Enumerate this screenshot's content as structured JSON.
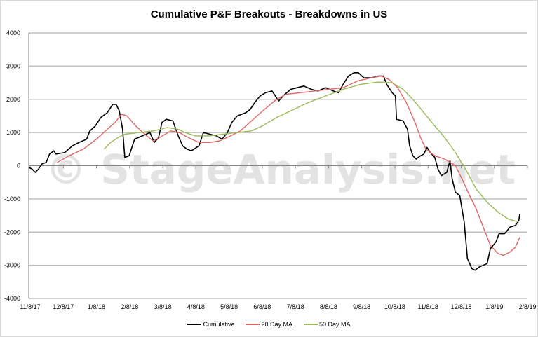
{
  "chart_data": {
    "type": "line",
    "title": "Cumulative P&F Breakouts - Breakdowns in US",
    "xlabel": "",
    "ylabel": "",
    "ylim": [
      -4000,
      4000
    ],
    "yticks": [
      "4000",
      "3000",
      "2000",
      "1000",
      "0",
      "-1000",
      "-2000",
      "-3000",
      "-4000"
    ],
    "xlim": [
      "2017-11-08",
      "2019-02-08"
    ],
    "xticks": [
      "11/8/17",
      "12/8/17",
      "1/8/18",
      "2/8/18",
      "3/8/18",
      "4/8/18",
      "5/8/18",
      "6/8/18",
      "7/8/18",
      "8/8/18",
      "9/8/18",
      "10/8/18",
      "11/8/18",
      "12/8/18",
      "1/8/19",
      "2/8/19"
    ],
    "grid": "horizontal",
    "legend": "bottom",
    "watermark": "© StageAnalysis.net",
    "series": [
      {
        "name": "Cumulative",
        "color": "#000000",
        "points": [
          [
            "2017-11-08",
            -50
          ],
          [
            "2017-11-11",
            -100
          ],
          [
            "2017-11-14",
            -200
          ],
          [
            "2017-11-17",
            -100
          ],
          [
            "2017-11-20",
            50
          ],
          [
            "2017-11-24",
            100
          ],
          [
            "2017-11-27",
            350
          ],
          [
            "2017-12-01",
            450
          ],
          [
            "2017-12-03",
            350
          ],
          [
            "2017-12-11",
            400
          ],
          [
            "2017-12-18",
            600
          ],
          [
            "2017-12-24",
            700
          ],
          [
            "2017-12-31",
            800
          ],
          [
            "2018-01-03",
            1050
          ],
          [
            "2018-01-08",
            1200
          ],
          [
            "2018-01-13",
            1450
          ],
          [
            "2018-01-19",
            1600
          ],
          [
            "2018-01-24",
            1850
          ],
          [
            "2018-01-27",
            1850
          ],
          [
            "2018-01-30",
            1650
          ],
          [
            "2018-02-02",
            1100
          ],
          [
            "2018-02-04",
            250
          ],
          [
            "2018-02-08",
            300
          ],
          [
            "2018-02-13",
            800
          ],
          [
            "2018-02-20",
            900
          ],
          [
            "2018-02-27",
            1000
          ],
          [
            "2018-03-03",
            700
          ],
          [
            "2018-03-07",
            850
          ],
          [
            "2018-03-10",
            1300
          ],
          [
            "2018-03-14",
            1400
          ],
          [
            "2018-03-20",
            1350
          ],
          [
            "2018-03-25",
            900
          ],
          [
            "2018-03-29",
            600
          ],
          [
            "2018-04-02",
            500
          ],
          [
            "2018-04-06",
            450
          ],
          [
            "2018-04-13",
            600
          ],
          [
            "2018-04-17",
            1000
          ],
          [
            "2018-04-23",
            950
          ],
          [
            "2018-04-29",
            900
          ],
          [
            "2018-05-04",
            800
          ],
          [
            "2018-05-09",
            1000
          ],
          [
            "2018-05-13",
            1300
          ],
          [
            "2018-05-18",
            1500
          ],
          [
            "2018-05-26",
            1600
          ],
          [
            "2018-05-30",
            1700
          ],
          [
            "2018-06-03",
            1900
          ],
          [
            "2018-06-08",
            2100
          ],
          [
            "2018-06-13",
            2200
          ],
          [
            "2018-06-19",
            2250
          ],
          [
            "2018-06-25",
            1950
          ],
          [
            "2018-06-29",
            2100
          ],
          [
            "2018-07-06",
            2300
          ],
          [
            "2018-07-12",
            2350
          ],
          [
            "2018-07-18",
            2400
          ],
          [
            "2018-07-25",
            2300
          ],
          [
            "2018-07-31",
            2250
          ],
          [
            "2018-08-07",
            2350
          ],
          [
            "2018-08-14",
            2250
          ],
          [
            "2018-08-19",
            2200
          ],
          [
            "2018-08-23",
            2450
          ],
          [
            "2018-08-28",
            2700
          ],
          [
            "2018-09-02",
            2800
          ],
          [
            "2018-09-06",
            2800
          ],
          [
            "2018-09-11",
            2650
          ],
          [
            "2018-09-18",
            2650
          ],
          [
            "2018-09-24",
            2700
          ],
          [
            "2018-09-29",
            2700
          ],
          [
            "2018-10-02",
            2450
          ],
          [
            "2018-10-07",
            2200
          ],
          [
            "2018-10-10",
            2100
          ],
          [
            "2018-10-11",
            1400
          ],
          [
            "2018-10-17",
            1350
          ],
          [
            "2018-10-21",
            1100
          ],
          [
            "2018-10-23",
            600
          ],
          [
            "2018-10-26",
            300
          ],
          [
            "2018-10-29",
            200
          ],
          [
            "2018-11-02",
            300
          ],
          [
            "2018-11-05",
            350
          ],
          [
            "2018-11-08",
            550
          ],
          [
            "2018-11-11",
            400
          ],
          [
            "2018-11-15",
            250
          ],
          [
            "2018-11-18",
            -100
          ],
          [
            "2018-11-21",
            -300
          ],
          [
            "2018-11-26",
            -200
          ],
          [
            "2018-11-29",
            150
          ],
          [
            "2018-12-01",
            -400
          ],
          [
            "2018-12-04",
            -800
          ],
          [
            "2018-12-08",
            -900
          ],
          [
            "2018-12-12",
            -1700
          ],
          [
            "2018-12-15",
            -2800
          ],
          [
            "2018-12-19",
            -3100
          ],
          [
            "2018-12-22",
            -3150
          ],
          [
            "2018-12-26",
            -3050
          ],
          [
            "2019-01-02",
            -2950
          ],
          [
            "2019-01-05",
            -2500
          ],
          [
            "2019-01-10",
            -2300
          ],
          [
            "2019-01-13",
            -2050
          ],
          [
            "2019-01-18",
            -2050
          ],
          [
            "2019-01-23",
            -1850
          ],
          [
            "2019-01-28",
            -1800
          ],
          [
            "2019-01-31",
            -1650
          ],
          [
            "2019-02-01",
            -1450
          ]
        ]
      },
      {
        "name": "20 Day MA",
        "color": "#e06666",
        "points": [
          [
            "2017-12-04",
            100
          ],
          [
            "2017-12-15",
            300
          ],
          [
            "2017-12-28",
            500
          ],
          [
            "2018-01-09",
            800
          ],
          [
            "2018-01-19",
            1100
          ],
          [
            "2018-01-26",
            1300
          ],
          [
            "2018-02-01",
            1550
          ],
          [
            "2018-02-06",
            1500
          ],
          [
            "2018-02-14",
            1200
          ],
          [
            "2018-02-24",
            900
          ],
          [
            "2018-03-02",
            750
          ],
          [
            "2018-03-08",
            850
          ],
          [
            "2018-03-18",
            1050
          ],
          [
            "2018-03-26",
            1000
          ],
          [
            "2018-04-03",
            850
          ],
          [
            "2018-04-13",
            700
          ],
          [
            "2018-04-23",
            700
          ],
          [
            "2018-05-02",
            750
          ],
          [
            "2018-05-12",
            900
          ],
          [
            "2018-05-21",
            1050
          ],
          [
            "2018-05-31",
            1350
          ],
          [
            "2018-06-12",
            1700
          ],
          [
            "2018-06-23",
            2000
          ],
          [
            "2018-07-02",
            2150
          ],
          [
            "2018-07-15",
            2200
          ],
          [
            "2018-07-28",
            2250
          ],
          [
            "2018-08-10",
            2300
          ],
          [
            "2018-08-23",
            2350
          ],
          [
            "2018-09-05",
            2550
          ],
          [
            "2018-09-18",
            2650
          ],
          [
            "2018-09-27",
            2700
          ],
          [
            "2018-10-04",
            2600
          ],
          [
            "2018-10-12",
            2350
          ],
          [
            "2018-10-20",
            1900
          ],
          [
            "2018-10-28",
            1300
          ],
          [
            "2018-11-02",
            850
          ],
          [
            "2018-11-07",
            500
          ],
          [
            "2018-11-15",
            300
          ],
          [
            "2018-11-24",
            200
          ],
          [
            "2018-12-04",
            0
          ],
          [
            "2018-12-10",
            -400
          ],
          [
            "2018-12-17",
            -900
          ],
          [
            "2018-12-23",
            -1300
          ],
          [
            "2018-12-30",
            -1900
          ],
          [
            "2019-01-05",
            -2400
          ],
          [
            "2019-01-12",
            -2650
          ],
          [
            "2019-01-17",
            -2700
          ],
          [
            "2019-01-23",
            -2600
          ],
          [
            "2019-01-28",
            -2450
          ],
          [
            "2019-02-01",
            -2150
          ]
        ]
      },
      {
        "name": "50 Day MA",
        "color": "#9bbb59",
        "points": [
          [
            "2018-01-16",
            500
          ],
          [
            "2018-01-22",
            700
          ],
          [
            "2018-01-29",
            850
          ],
          [
            "2018-02-04",
            950
          ],
          [
            "2018-02-17",
            1000
          ],
          [
            "2018-03-02",
            1050
          ],
          [
            "2018-03-15",
            1150
          ],
          [
            "2018-03-25",
            1100
          ],
          [
            "2018-03-31",
            1000
          ],
          [
            "2018-04-10",
            900
          ],
          [
            "2018-04-23",
            900
          ],
          [
            "2018-05-05",
            950
          ],
          [
            "2018-05-18",
            1000
          ],
          [
            "2018-05-31",
            1050
          ],
          [
            "2018-06-10",
            1200
          ],
          [
            "2018-06-23",
            1450
          ],
          [
            "2018-07-06",
            1650
          ],
          [
            "2018-07-22",
            1900
          ],
          [
            "2018-08-07",
            2100
          ],
          [
            "2018-08-23",
            2300
          ],
          [
            "2018-09-08",
            2450
          ],
          [
            "2018-09-24",
            2520
          ],
          [
            "2018-10-07",
            2500
          ],
          [
            "2018-10-17",
            2300
          ],
          [
            "2018-10-26",
            2000
          ],
          [
            "2018-11-05",
            1600
          ],
          [
            "2018-11-15",
            1200
          ],
          [
            "2018-11-24",
            850
          ],
          [
            "2018-12-04",
            400
          ],
          [
            "2018-12-14",
            -150
          ],
          [
            "2018-12-23",
            -700
          ],
          [
            "2019-01-02",
            -1100
          ],
          [
            "2019-01-12",
            -1400
          ],
          [
            "2019-01-21",
            -1600
          ],
          [
            "2019-01-31",
            -1700
          ]
        ]
      }
    ]
  }
}
